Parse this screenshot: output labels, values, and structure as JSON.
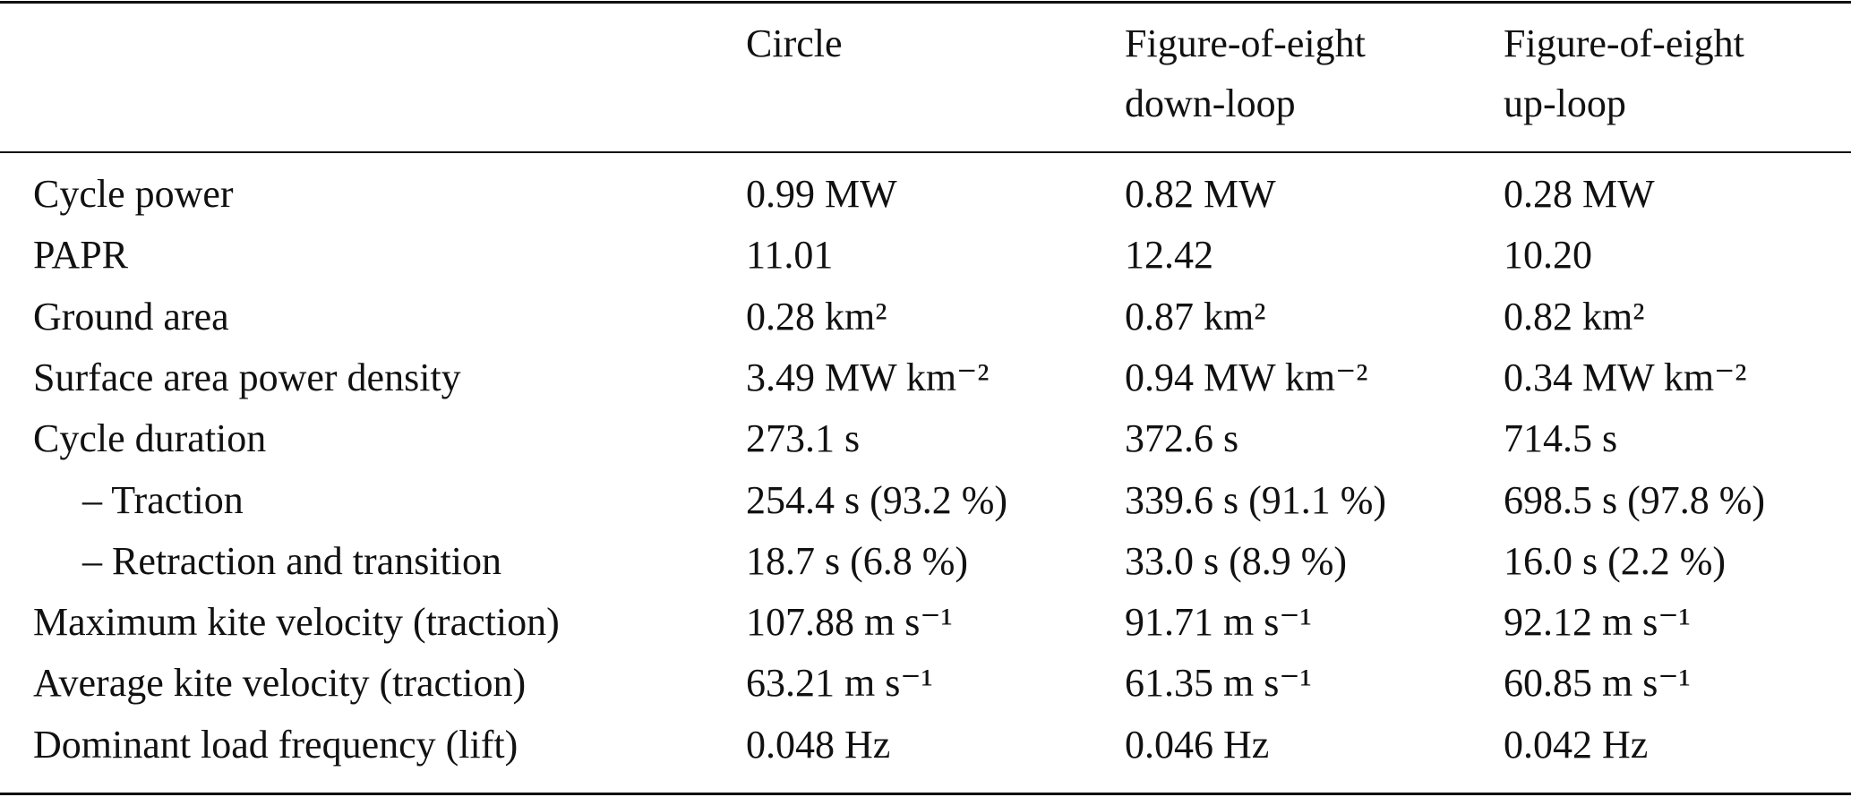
{
  "table": {
    "columns": [
      [
        "Circle"
      ],
      [
        "Figure-of-eight",
        "down-loop"
      ],
      [
        "Figure-of-eight",
        "up-loop"
      ]
    ],
    "rows": [
      [
        "Cycle power",
        "0.99 MW",
        "0.82 MW",
        "0.28 MW"
      ],
      [
        "PAPR",
        "11.01",
        "12.42",
        "10.20"
      ],
      [
        "Ground area",
        "0.28 km²",
        "0.87 km²",
        "0.82 km²"
      ],
      [
        "Surface area power density",
        "3.49 MW km⁻²",
        "0.94 MW km⁻²",
        "0.34 MW km⁻²"
      ],
      [
        "Cycle duration",
        "273.1 s",
        "372.6 s",
        "714.5 s"
      ],
      [
        "– Traction",
        "254.4 s (93.2 %)",
        "339.6 s (91.1 %)",
        "698.5 s (97.8 %)"
      ],
      [
        "– Retraction and transition",
        "18.7 s (6.8 %)",
        "33.0 s (8.9 %)",
        "16.0 s (2.2 %)"
      ],
      [
        "Maximum kite velocity (traction)",
        "107.88 m s⁻¹",
        "91.71 m s⁻¹",
        "92.12 m s⁻¹"
      ],
      [
        "Average kite velocity (traction)",
        "63.21 m s⁻¹",
        "61.35 m s⁻¹",
        "60.85 m s⁻¹"
      ],
      [
        "Dominant load frequency (lift)",
        "0.048 Hz",
        "0.046 Hz",
        "0.042 Hz"
      ]
    ]
  }
}
